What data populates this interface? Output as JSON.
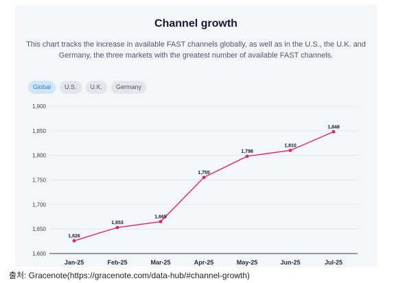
{
  "card": {
    "title": "Channel growth",
    "subtitle": "This chart tracks the increase in available FAST channels globally, as well as in the U.S., the U.K. and Germany, the three markets with the greatest number of available FAST channels."
  },
  "tabs": [
    {
      "label": "Global",
      "active": true
    },
    {
      "label": "U.S.",
      "active": false
    },
    {
      "label": "U.K.",
      "active": false
    },
    {
      "label": "Germany",
      "active": false
    }
  ],
  "chart_data": {
    "type": "line",
    "categories": [
      "Jan-25",
      "Feb-25",
      "Mar-25",
      "Apr-25",
      "May-25",
      "Jun-25",
      "Jul-25"
    ],
    "series": [
      {
        "values": [
          1626,
          1653,
          1665,
          1755,
          1798,
          1810,
          1848
        ]
      }
    ],
    "data_labels": [
      "1,626",
      "1,653",
      "1,665",
      "1,755",
      "1,798",
      "1,810",
      "1,848"
    ],
    "ylim": [
      1600,
      1900
    ],
    "yticks": [
      1600,
      1650,
      1700,
      1750,
      1800,
      1850,
      1900
    ],
    "ytick_labels": [
      "1,600",
      "1,650",
      "1,700",
      "1,750",
      "1,800",
      "1,850",
      "1,900"
    ],
    "line_color": "#e0245e",
    "grid": true
  },
  "source": "출처:  Gracenote(https://gracenote.com/data-hub/#channel-growth)"
}
